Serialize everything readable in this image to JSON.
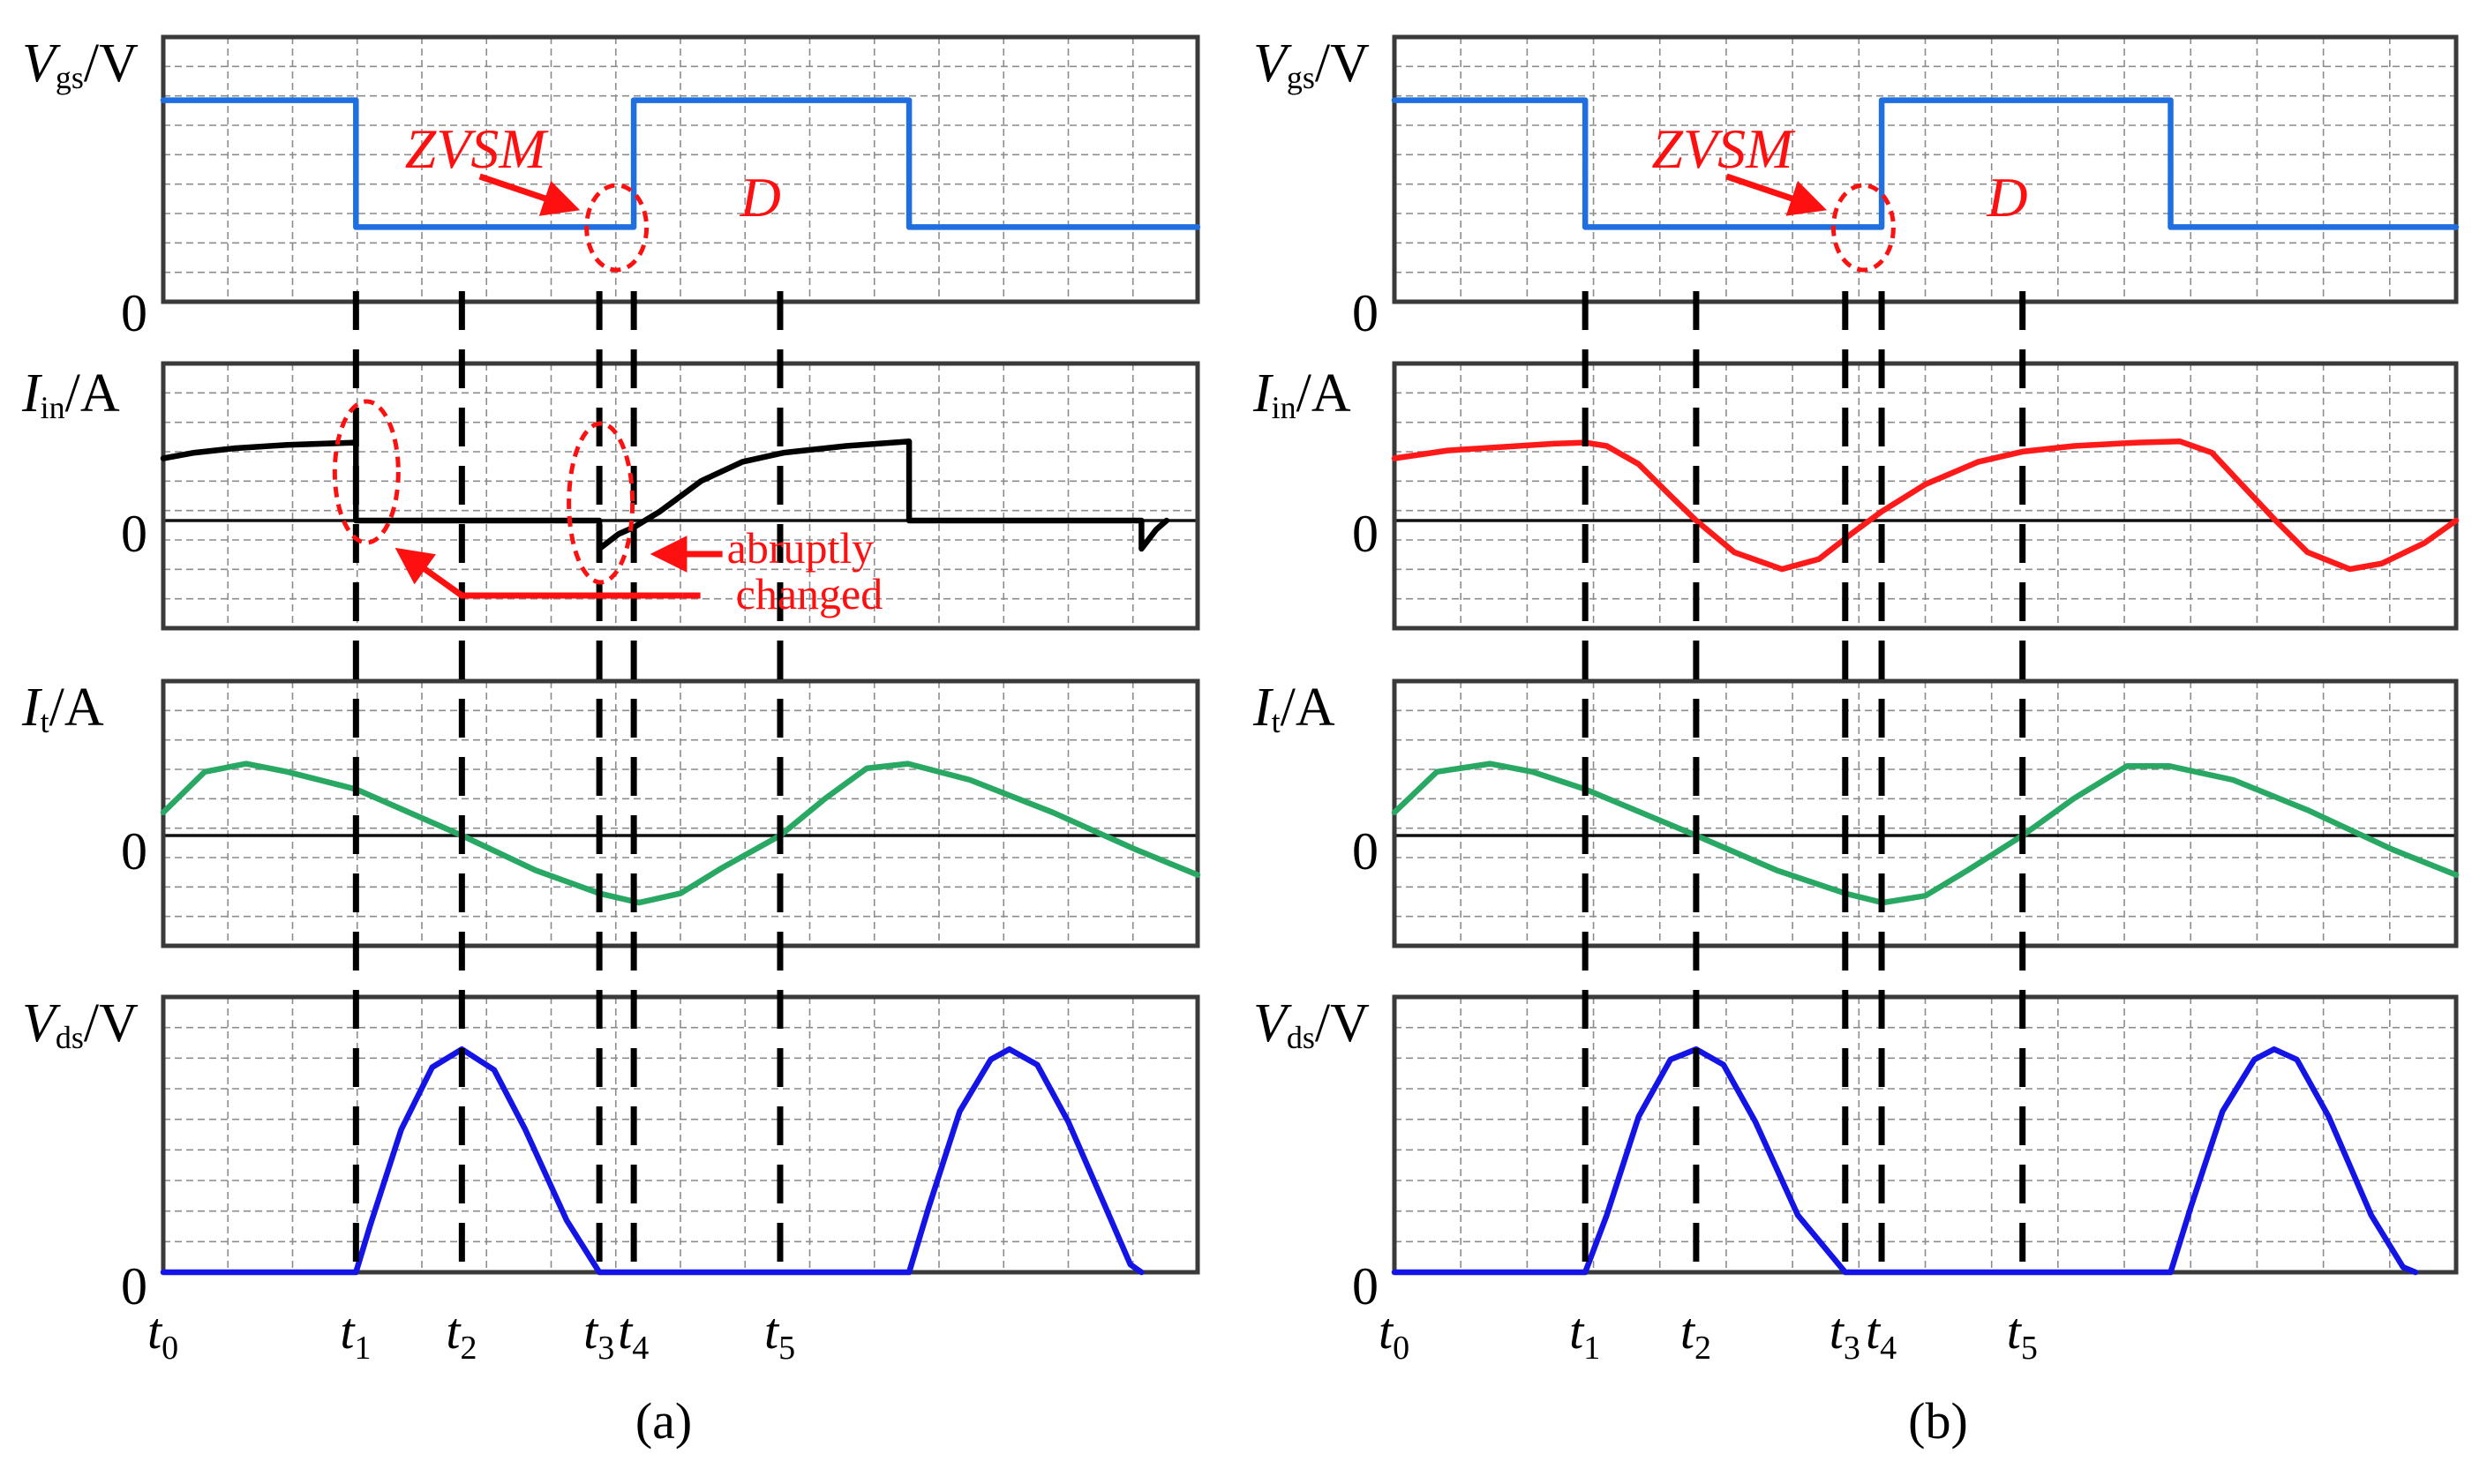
{
  "chart_data": [
    {
      "type": "line",
      "id": "a",
      "caption": "(a)",
      "time_labels": [
        {
          "base": "t",
          "sub": "0"
        },
        {
          "base": "t",
          "sub": "1"
        },
        {
          "base": "t",
          "sub": "2"
        },
        {
          "base": "t",
          "sub": "3"
        },
        {
          "base": "t",
          "sub": "4"
        },
        {
          "base": "t",
          "sub": "5"
        }
      ],
      "time_ticks": [
        0,
        0.1863,
        0.2887,
        0.4216,
        0.4549,
        0.5964
      ],
      "x_range": [
        0,
        1
      ],
      "annotations": {
        "zvsm": "ZVSM",
        "duty": "D",
        "abrupt_line1": "abruptly",
        "abrupt_line2": "changed"
      },
      "series": [
        {
          "name": "Vgs",
          "sym": "V",
          "sub": "gs",
          "unit": "/V",
          "zero_label": "0",
          "color": "#1f6fe0",
          "ylim": [
            0,
            1
          ],
          "zero_level": 0,
          "points": [
            [
              0,
              0.81
            ],
            [
              0.1863,
              0.81
            ],
            [
              0.1863,
              0.3
            ],
            [
              0.4549,
              0.3
            ],
            [
              0.4549,
              0.81
            ],
            [
              0.7211,
              0.81
            ],
            [
              0.7211,
              0.3
            ],
            [
              1,
              0.3
            ]
          ]
        },
        {
          "name": "Iin",
          "sym": "I",
          "sub": "in",
          "unit": "/A",
          "zero_label": "0",
          "color": "#000000",
          "ylim": [
            -1,
            1
          ],
          "zero_level": 0,
          "points": [
            [
              0,
              0.55
            ],
            [
              0.03,
              0.6
            ],
            [
              0.07,
              0.64
            ],
            [
              0.12,
              0.67
            ],
            [
              0.1863,
              0.69
            ],
            [
              0.1863,
              0
            ],
            [
              0.4216,
              0
            ],
            [
              0.4216,
              -0.25
            ],
            [
              0.44,
              -0.12
            ],
            [
              0.4549,
              -0.06
            ],
            [
              0.48,
              0.08
            ],
            [
              0.52,
              0.35
            ],
            [
              0.56,
              0.52
            ],
            [
              0.6,
              0.6
            ],
            [
              0.66,
              0.66
            ],
            [
              0.7211,
              0.7
            ],
            [
              0.7211,
              0
            ],
            [
              0.9457,
              0
            ],
            [
              0.9457,
              -0.25
            ],
            [
              0.96,
              -0.08
            ],
            [
              0.97,
              0
            ]
          ]
        },
        {
          "name": "It",
          "sym": "I",
          "sub": "t",
          "unit": "/A",
          "zero_label": "0",
          "color": "#29a864",
          "ylim": [
            -1,
            1
          ],
          "zero_level": 0,
          "points": [
            [
              0,
              0.2
            ],
            [
              0.04,
              0.55
            ],
            [
              0.08,
              0.62
            ],
            [
              0.12,
              0.55
            ],
            [
              0.1863,
              0.4
            ],
            [
              0.2887,
              0
            ],
            [
              0.36,
              -0.3
            ],
            [
              0.4216,
              -0.5
            ],
            [
              0.46,
              -0.58
            ],
            [
              0.5,
              -0.5
            ],
            [
              0.54,
              -0.28
            ],
            [
              0.5964,
              0
            ],
            [
              0.64,
              0.32
            ],
            [
              0.68,
              0.58
            ],
            [
              0.72,
              0.62
            ],
            [
              0.78,
              0.48
            ],
            [
              0.86,
              0.2
            ],
            [
              0.94,
              -0.12
            ],
            [
              1,
              -0.34
            ]
          ]
        },
        {
          "name": "Vds",
          "sym": "V",
          "sub": "ds",
          "unit": "/V",
          "zero_label": "0",
          "color": "#1414e6",
          "ylim": [
            0,
            1
          ],
          "zero_level": 0,
          "points": [
            [
              0,
              0
            ],
            [
              0.1863,
              0
            ],
            [
              0.2,
              0.18
            ],
            [
              0.23,
              0.55
            ],
            [
              0.26,
              0.79
            ],
            [
              0.2887,
              0.86
            ],
            [
              0.32,
              0.78
            ],
            [
              0.35,
              0.55
            ],
            [
              0.39,
              0.2
            ],
            [
              0.4216,
              0
            ],
            [
              0.7211,
              0
            ],
            [
              0.74,
              0.25
            ],
            [
              0.77,
              0.62
            ],
            [
              0.8,
              0.82
            ],
            [
              0.818,
              0.86
            ],
            [
              0.845,
              0.8
            ],
            [
              0.875,
              0.58
            ],
            [
              0.91,
              0.26
            ],
            [
              0.935,
              0.03
            ],
            [
              0.9457,
              0
            ]
          ]
        }
      ]
    },
    {
      "type": "line",
      "id": "b",
      "caption": "(b)",
      "time_labels": [
        {
          "base": "t",
          "sub": "0"
        },
        {
          "base": "t",
          "sub": "1"
        },
        {
          "base": "t",
          "sub": "2"
        },
        {
          "base": "t",
          "sub": "3"
        },
        {
          "base": "t",
          "sub": "4"
        },
        {
          "base": "t",
          "sub": "5"
        }
      ],
      "time_ticks": [
        0,
        0.1797,
        0.2842,
        0.4246,
        0.4589,
        0.5916
      ],
      "x_range": [
        0,
        1
      ],
      "annotations": {
        "zvsm": "ZVSM",
        "duty": "D"
      },
      "series": [
        {
          "name": "Vgs",
          "sym": "V",
          "sub": "gs",
          "unit": "/V",
          "zero_label": "0",
          "color": "#1f6fe0",
          "ylim": [
            0,
            1
          ],
          "zero_level": 0,
          "points": [
            [
              0,
              0.81
            ],
            [
              0.1797,
              0.81
            ],
            [
              0.1797,
              0.3
            ],
            [
              0.4589,
              0.3
            ],
            [
              0.4589,
              0.81
            ],
            [
              0.7311,
              0.81
            ],
            [
              0.7311,
              0.3
            ],
            [
              1,
              0.3
            ]
          ]
        },
        {
          "name": "Iin",
          "sym": "I",
          "sub": "in",
          "unit": "/A",
          "zero_label": "0",
          "color": "#ff1a1a",
          "ylim": [
            -1,
            1
          ],
          "zero_level": 0,
          "points": [
            [
              0,
              0.55
            ],
            [
              0.05,
              0.62
            ],
            [
              0.1,
              0.65
            ],
            [
              0.15,
              0.68
            ],
            [
              0.1797,
              0.69
            ],
            [
              0.2,
              0.66
            ],
            [
              0.23,
              0.5
            ],
            [
              0.26,
              0.22
            ],
            [
              0.2842,
              0
            ],
            [
              0.32,
              -0.28
            ],
            [
              0.365,
              -0.43
            ],
            [
              0.4,
              -0.34
            ],
            [
              0.43,
              -0.12
            ],
            [
              0.4589,
              0.08
            ],
            [
              0.5,
              0.32
            ],
            [
              0.55,
              0.52
            ],
            [
              0.5916,
              0.61
            ],
            [
              0.64,
              0.66
            ],
            [
              0.7,
              0.69
            ],
            [
              0.74,
              0.7
            ],
            [
              0.77,
              0.6
            ],
            [
              0.8,
              0.3
            ],
            [
              0.83,
              0
            ],
            [
              0.86,
              -0.28
            ],
            [
              0.9,
              -0.43
            ],
            [
              0.93,
              -0.38
            ],
            [
              0.97,
              -0.2
            ],
            [
              1,
              0
            ]
          ]
        },
        {
          "name": "It",
          "sym": "I",
          "sub": "t",
          "unit": "/A",
          "zero_label": "0",
          "color": "#29a864",
          "ylim": [
            -1,
            1
          ],
          "zero_level": 0,
          "points": [
            [
              0,
              0.2
            ],
            [
              0.04,
              0.55
            ],
            [
              0.09,
              0.62
            ],
            [
              0.13,
              0.55
            ],
            [
              0.1797,
              0.4
            ],
            [
              0.2842,
              0
            ],
            [
              0.36,
              -0.3
            ],
            [
              0.4246,
              -0.5
            ],
            [
              0.46,
              -0.58
            ],
            [
              0.5,
              -0.52
            ],
            [
              0.54,
              -0.3
            ],
            [
              0.5916,
              0
            ],
            [
              0.64,
              0.32
            ],
            [
              0.69,
              0.6
            ],
            [
              0.73,
              0.6
            ],
            [
              0.79,
              0.48
            ],
            [
              0.86,
              0.22
            ],
            [
              0.94,
              -0.12
            ],
            [
              1,
              -0.34
            ]
          ]
        },
        {
          "name": "Vds",
          "sym": "V",
          "sub": "ds",
          "unit": "/V",
          "zero_label": "0",
          "color": "#1414e6",
          "ylim": [
            0,
            1
          ],
          "zero_level": 0,
          "points": [
            [
              0,
              0
            ],
            [
              0.1797,
              0
            ],
            [
              0.2,
              0.22
            ],
            [
              0.23,
              0.6
            ],
            [
              0.26,
              0.82
            ],
            [
              0.2842,
              0.86
            ],
            [
              0.31,
              0.8
            ],
            [
              0.34,
              0.58
            ],
            [
              0.38,
              0.22
            ],
            [
              0.4246,
              0
            ],
            [
              0.7311,
              0
            ],
            [
              0.75,
              0.25
            ],
            [
              0.78,
              0.62
            ],
            [
              0.81,
              0.82
            ],
            [
              0.8285,
              0.86
            ],
            [
              0.85,
              0.82
            ],
            [
              0.88,
              0.6
            ],
            [
              0.92,
              0.22
            ],
            [
              0.95,
              0.02
            ],
            [
              0.9617,
              0
            ]
          ]
        }
      ]
    }
  ]
}
